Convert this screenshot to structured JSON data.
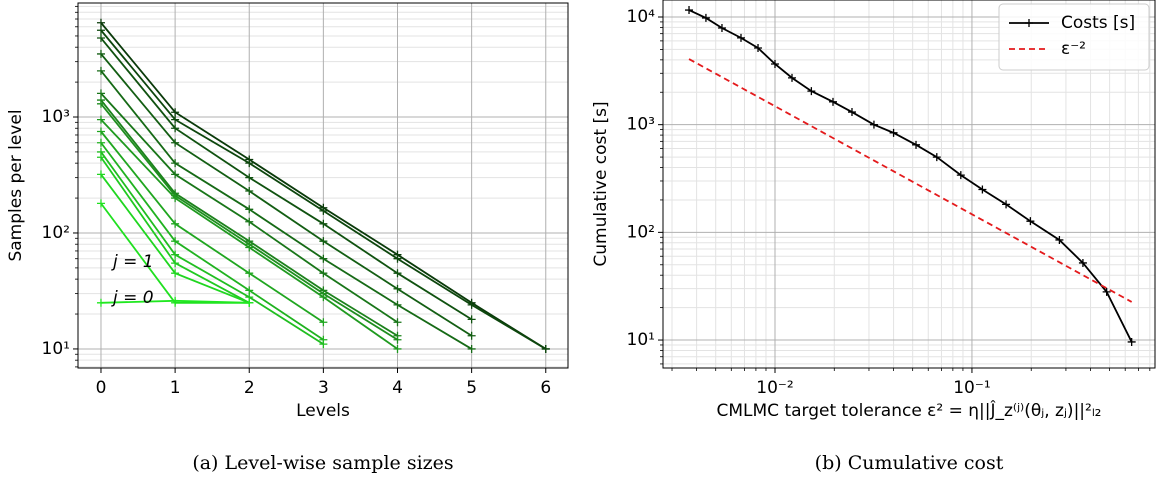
{
  "chart_data": [
    {
      "type": "line",
      "caption": "(a) Level-wise sample sizes",
      "xlabel": "Levels",
      "ylabel": "Samples per level",
      "xscale": "linear",
      "yscale": "log",
      "grid": true,
      "x": [
        0,
        1,
        2,
        3,
        4,
        5,
        6
      ],
      "xlim": [
        -0.31,
        6.3
      ],
      "xticks": [
        0,
        1,
        2,
        3,
        4,
        5,
        6
      ],
      "ylim": [
        6.85,
        9620
      ],
      "yticks": [
        {
          "value": 10,
          "label": "10¹"
        },
        {
          "value": 100,
          "label": "10²"
        },
        {
          "value": 1000,
          "label": "10³"
        }
      ],
      "minor_yticks": [
        7,
        8,
        9,
        20,
        30,
        40,
        50,
        60,
        70,
        80,
        90,
        200,
        300,
        400,
        500,
        600,
        700,
        800,
        900,
        2000,
        3000,
        4000,
        5000,
        6000,
        7000,
        8000,
        9000
      ],
      "annotations": [
        "j = 1",
        "j = 0"
      ],
      "marker": "+",
      "series": [
        {
          "color": "#0a3a0a",
          "values": [
            6500,
            1100,
            430,
            165,
            65,
            25,
            10
          ]
        },
        {
          "color": "#0d460d",
          "values": [
            5600,
            950,
            400,
            155,
            60,
            24,
            10
          ]
        },
        {
          "color": "#105210",
          "values": [
            4800,
            800,
            300,
            120,
            45,
            18,
            null
          ]
        },
        {
          "color": "#135e13",
          "values": [
            3500,
            600,
            230,
            85,
            33,
            13,
            null
          ]
        },
        {
          "color": "#166a16",
          "values": [
            2500,
            400,
            160,
            60,
            24,
            10,
            null
          ]
        },
        {
          "color": "#197619",
          "values": [
            1600,
            320,
            125,
            45,
            17,
            null,
            null
          ]
        },
        {
          "color": "#1c821c",
          "values": [
            1400,
            220,
            85,
            32,
            13,
            null,
            null
          ]
        },
        {
          "color": "#1f8e1f",
          "values": [
            1300,
            210,
            80,
            30,
            12,
            null,
            null
          ]
        },
        {
          "color": "#1f9a1f",
          "values": [
            950,
            200,
            75,
            28,
            10,
            null,
            null
          ]
        },
        {
          "color": "#20a620",
          "values": [
            750,
            120,
            45,
            17,
            null,
            null,
            null
          ]
        },
        {
          "color": "#20b220",
          "values": [
            600,
            85,
            32,
            12,
            null,
            null,
            null
          ]
        },
        {
          "color": "#20be20",
          "values": [
            500,
            65,
            28,
            11,
            null,
            null,
            null
          ]
        },
        {
          "color": "#20ca20",
          "values": [
            450,
            55,
            25,
            null,
            null,
            null,
            null
          ]
        },
        {
          "color": "#20d620",
          "values": [
            320,
            45,
            25,
            null,
            null,
            null,
            null
          ]
        },
        {
          "color": "#20e020",
          "values": [
            180,
            25,
            25,
            null,
            null,
            null,
            null
          ]
        },
        {
          "color": "#20e820",
          "values": [
            25,
            26,
            25,
            null,
            null,
            null,
            null
          ]
        }
      ]
    },
    {
      "type": "line",
      "caption": "(b) Cumulative cost",
      "xlabel": "CMLMC target tolerance ε² = η||Ĵ_z⁽ʲ⁾(θⱼ, zⱼ)||²ₗ₂",
      "ylabel": "Cumulative cost [s]",
      "xscale": "log",
      "yscale": "log",
      "grid": true,
      "legend": "upper right",
      "xlim": [
        0.0027,
        0.85
      ],
      "xticks": [
        {
          "value": 0.01,
          "label": "10⁻²"
        },
        {
          "value": 0.1,
          "label": "10⁻¹"
        }
      ],
      "minor_xticks": [
        0.003,
        0.004,
        0.005,
        0.006,
        0.007,
        0.008,
        0.009,
        0.02,
        0.03,
        0.04,
        0.05,
        0.06,
        0.07,
        0.08,
        0.09,
        0.2,
        0.3,
        0.4,
        0.5,
        0.6,
        0.7,
        0.8
      ],
      "ylim": [
        5.5,
        14380
      ],
      "yticks": [
        {
          "value": 10,
          "label": "10¹"
        },
        {
          "value": 100,
          "label": "10²"
        },
        {
          "value": 1000,
          "label": "10³"
        },
        {
          "value": 10000,
          "label": "10⁴"
        }
      ],
      "minor_yticks": [
        6,
        7,
        8,
        9,
        20,
        30,
        40,
        50,
        60,
        70,
        80,
        90,
        200,
        300,
        400,
        500,
        600,
        700,
        800,
        900,
        2000,
        3000,
        4000,
        5000,
        6000,
        7000,
        8000,
        9000
      ],
      "series": [
        {
          "name": "Costs [s]",
          "color": "#000000",
          "marker": "+",
          "x": [
            0.00366,
            0.00446,
            0.00538,
            0.00672,
            0.0082,
            0.01,
            0.0122,
            0.0153,
            0.0197,
            0.0246,
            0.0318,
            0.04,
            0.052,
            0.0663,
            0.0878,
            0.113,
            0.149,
            0.198,
            0.278,
            0.366,
            0.483,
            0.647
          ],
          "values": [
            11600,
            9800,
            7900,
            6400,
            5150,
            3660,
            2720,
            2050,
            1630,
            1310,
            1000,
            840,
            650,
            500,
            340,
            250,
            182,
            127,
            85,
            52,
            28,
            9.6
          ]
        },
        {
          "name": "ε⁻²",
          "color": "#e41a1c",
          "linestyle": "dashed",
          "x": [
            0.00366,
            0.647
          ],
          "values": [
            4070,
            22.6
          ]
        }
      ]
    }
  ]
}
